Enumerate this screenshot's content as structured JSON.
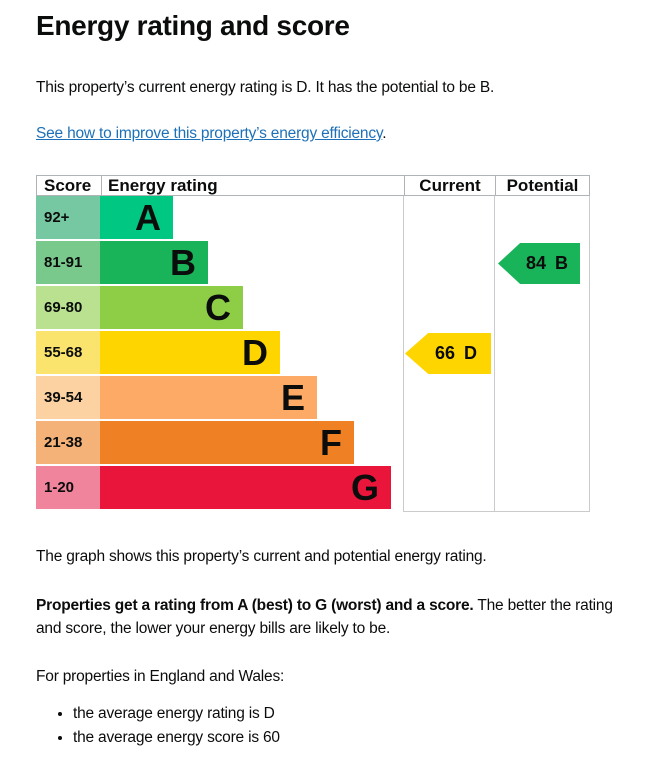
{
  "page": {
    "title": "Energy rating and score",
    "intro": "This property’s current energy rating is D. It has the potential to be B.",
    "link_text": "See how to improve this property’s energy efficiency",
    "link_suffix": ".",
    "caption": "The graph shows this property’s current and potential energy rating.",
    "explain_bold": "Properties get a rating from A (best) to G (worst) and a score.",
    "explain_rest": " The better the rating and score, the lower your energy bills are likely to be.",
    "region_intro": "For properties in England and Wales:",
    "bullets": [
      "the average energy rating is D",
      "the average energy score is 60"
    ]
  },
  "colors": {
    "text": "#0b0c0c",
    "link": "#1d70b8",
    "table_border": "#b1b4b6"
  },
  "chart_data": {
    "type": "bar",
    "columns": [
      "Score",
      "Energy rating",
      "Current",
      "Potential"
    ],
    "bands": [
      {
        "rating": "A",
        "score_range": "92+",
        "color": "#00c781",
        "tint": "#76c8a2",
        "bar_length": 73
      },
      {
        "rating": "B",
        "score_range": "81-91",
        "color": "#19b459",
        "tint": "#79c98c",
        "bar_length": 108
      },
      {
        "rating": "C",
        "score_range": "69-80",
        "color": "#8dce46",
        "tint": "#b9e18f",
        "bar_length": 143
      },
      {
        "rating": "D",
        "score_range": "55-68",
        "color": "#ffd500",
        "tint": "#fbe46e",
        "bar_length": 180
      },
      {
        "rating": "E",
        "score_range": "39-54",
        "color": "#fcaa65",
        "tint": "#fdd2a2",
        "bar_length": 217
      },
      {
        "rating": "F",
        "score_range": "21-38",
        "color": "#ef8023",
        "tint": "#f4b279",
        "bar_length": 254
      },
      {
        "rating": "G",
        "score_range": "1-20",
        "color": "#e9153b",
        "tint": "#f0849c",
        "bar_length": 291
      }
    ],
    "current": {
      "score": 66,
      "rating": "D",
      "band_index": 3,
      "arrow_color": "#ffd500"
    },
    "potential": {
      "score": 84,
      "rating": "B",
      "band_index": 1,
      "arrow_color": "#19b459"
    }
  }
}
